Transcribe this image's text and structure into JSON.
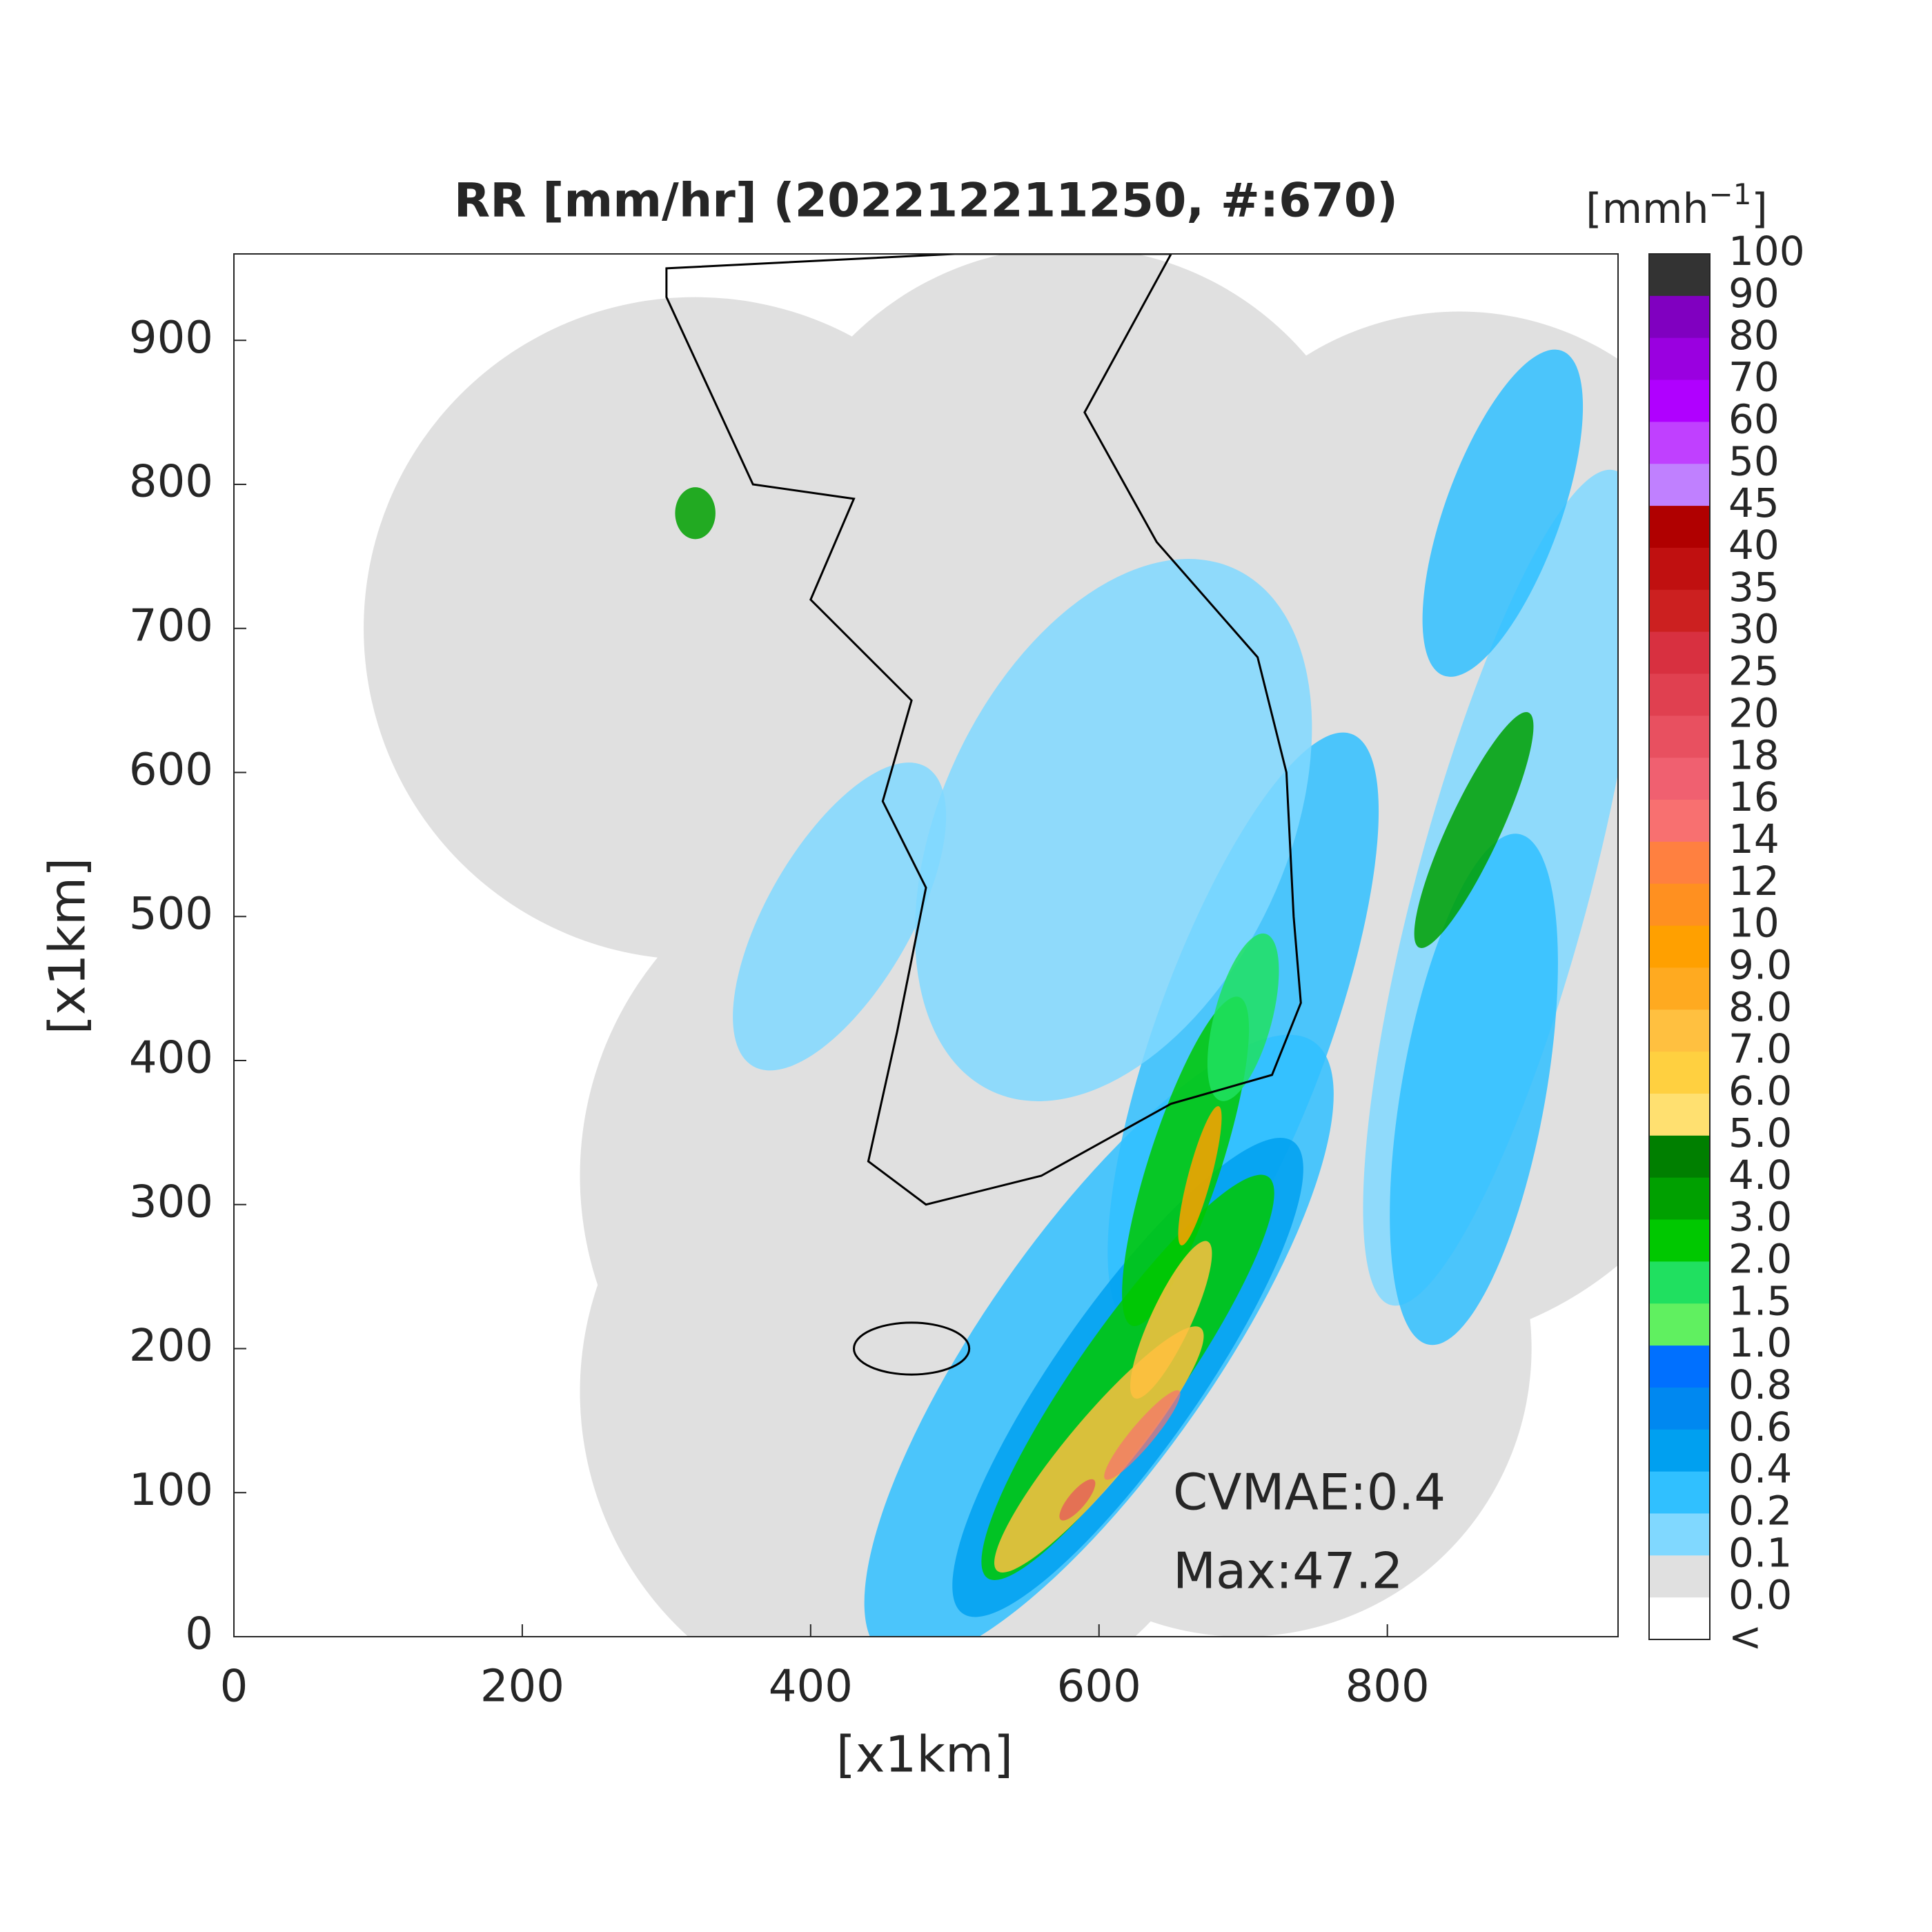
{
  "title": "RR [mm/hr] (202212211250, #:670)",
  "map": {
    "xlabel": "[x1km]",
    "ylabel": "[x1km]",
    "xlim": [
      0,
      960
    ],
    "ylim": [
      0,
      960
    ],
    "xticks": [
      0,
      200,
      400,
      600,
      800
    ],
    "yticks": [
      0,
      100,
      200,
      300,
      400,
      500,
      600,
      700,
      800,
      900
    ]
  },
  "colorbar": {
    "unit_base": "[mmh",
    "unit_exponent": "−1",
    "unit_close": "]",
    "labels": [
      "100",
      "90",
      "80",
      "70",
      "60",
      "50",
      "45",
      "40",
      "35",
      "30",
      "25",
      "20",
      "18",
      "16",
      "14",
      "12",
      "10",
      "9.0",
      "8.0",
      "7.0",
      "6.0",
      "5.0",
      "4.0",
      "3.0",
      "2.0",
      "1.5",
      "1.0",
      "0.8",
      "0.6",
      "0.4",
      "0.2",
      "0.1",
      "0.0",
      "<"
    ],
    "colors": [
      "#333333",
      "#8000c0",
      "#9a00e0",
      "#b000ff",
      "#c040ff",
      "#c080ff",
      "#b00000",
      "#c01010",
      "#cc2020",
      "#d83040",
      "#e04050",
      "#e85060",
      "#f06070",
      "#f87070",
      "#ff8040",
      "#ff9020",
      "#ffa000",
      "#ffaa20",
      "#ffc040",
      "#ffd040",
      "#ffe070",
      "#007f00",
      "#00a000",
      "#00c800",
      "#20e060",
      "#60f060",
      "#0070ff",
      "#0088f0",
      "#00a0f0",
      "#30c0ff",
      "#80d8ff",
      "#e0e0e0",
      "#ffffff"
    ]
  },
  "annotations": {
    "cvmae": "CVMAE:0.4",
    "max": "Max:47.2"
  }
}
